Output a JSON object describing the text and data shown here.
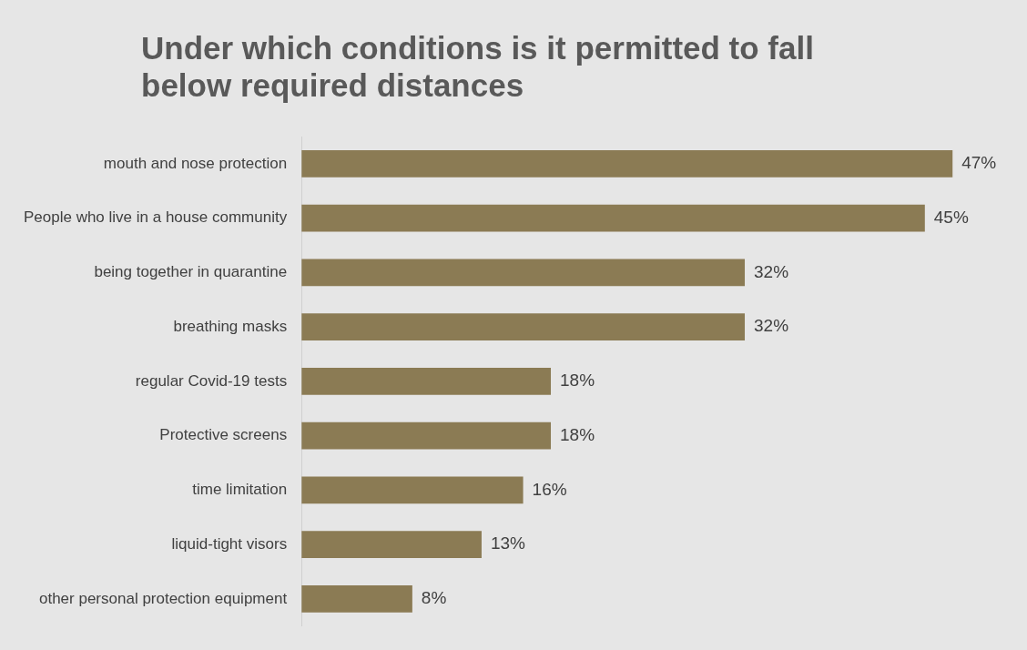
{
  "chart_data": {
    "type": "bar",
    "orientation": "horizontal",
    "title": "Under which conditions is it permitted to fall below required distances",
    "categories": [
      "mouth and nose protection",
      "People who live in a house community",
      "being together in quarantine",
      "breathing masks",
      "regular Covid-19 tests",
      "Protective screens",
      "time limitation",
      "liquid-tight visors",
      "other personal protection equipment"
    ],
    "values": [
      47,
      45,
      32,
      32,
      18,
      18,
      16,
      13,
      8
    ],
    "value_labels": [
      "47%",
      "45%",
      "32%",
      "32%",
      "18%",
      "18%",
      "16%",
      "13%",
      "8%"
    ],
    "color": "#8b7b54"
  }
}
